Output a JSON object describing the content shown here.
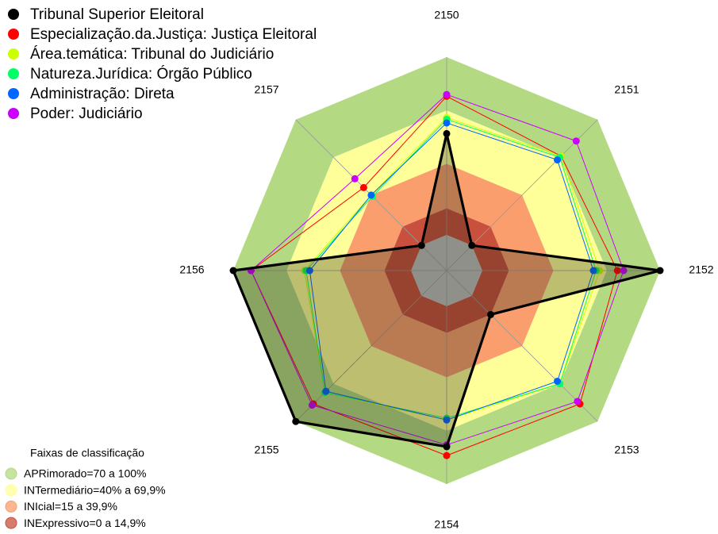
{
  "chart_data": {
    "type": "radar",
    "categories": [
      "2150",
      "2151",
      "2152",
      "2153",
      "2154",
      "2155",
      "2156",
      "2157"
    ],
    "ylim": [
      -20,
      100
    ],
    "series": [
      {
        "name": "Tribunal Superior Eleitoral",
        "color": "#000000",
        "values": [
          57,
          0,
          100,
          15,
          79,
          100,
          100,
          0
        ]
      },
      {
        "name": "Especialização.da.Justiça: Justiça Eleitoral",
        "color": "#ff0000",
        "values": [
          78,
          71,
          76,
          86,
          84,
          86,
          90,
          46
        ]
      },
      {
        "name": "Área.temática: Tribunal do Judiciário",
        "color": "#ccff00",
        "values": [
          66,
          71,
          66,
          70,
          64,
          77,
          60,
          40
        ]
      },
      {
        "name": "Natureza.Jurídica: Órgão Público",
        "color": "#00ff66",
        "values": [
          65,
          70,
          64,
          70,
          63,
          77,
          59,
          39
        ]
      },
      {
        "name": "Administração: Direta",
        "color": "#0066ff",
        "values": [
          63,
          68,
          62.5,
          68,
          64,
          76,
          57,
          40
        ]
      },
      {
        "name": "Poder: Judiciário",
        "color": "#cc00ff",
        "values": [
          79,
          83,
          79.5,
          84,
          78,
          87,
          90,
          53
        ]
      }
    ],
    "bands_title": "Faixas de classificação",
    "bands": [
      {
        "label": "APRimorado=70 a 100%",
        "from": 70,
        "to": 100,
        "color": "#b3da82"
      },
      {
        "label": "INTermediário=40% a 69,9%",
        "from": 40,
        "to": 70,
        "color": "#ffff99"
      },
      {
        "label": "INIcial=15 a 39,9%",
        "from": 15,
        "to": 40,
        "color": "#fa9e6e"
      },
      {
        "label": "INExpressivo=0 a 14,9%",
        "from": 0,
        "to": 15,
        "color": "#c8503c"
      }
    ]
  }
}
